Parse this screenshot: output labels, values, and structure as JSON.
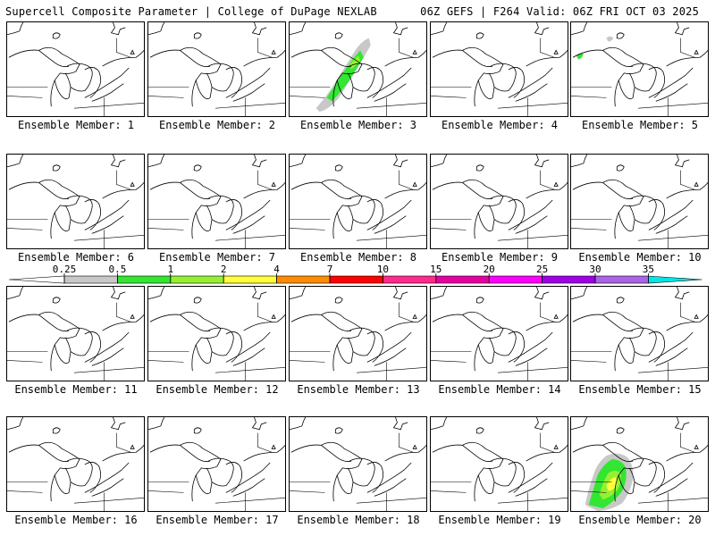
{
  "header": {
    "left": "Supercell Composite Parameter | College of DuPage NEXLAB",
    "right": "06Z GEFS | F264 Valid: 06Z FRI OCT 03 2025"
  },
  "panels": [
    {
      "label": "Ensemble Member: 1",
      "blob": "none"
    },
    {
      "label": "Ensemble Member: 2",
      "blob": "none"
    },
    {
      "label": "Ensemble Member: 3",
      "blob": "michigan-band"
    },
    {
      "label": "Ensemble Member: 4",
      "blob": "none"
    },
    {
      "label": "Ensemble Member: 5",
      "blob": "nw-speck"
    },
    {
      "label": "Ensemble Member: 6",
      "blob": "none"
    },
    {
      "label": "Ensemble Member: 7",
      "blob": "none"
    },
    {
      "label": "Ensemble Member: 8",
      "blob": "none"
    },
    {
      "label": "Ensemble Member: 9",
      "blob": "none"
    },
    {
      "label": "Ensemble Member: 10",
      "blob": "none"
    },
    {
      "label": "Ensemble Member: 11",
      "blob": "none"
    },
    {
      "label": "Ensemble Member: 12",
      "blob": "none"
    },
    {
      "label": "Ensemble Member: 13",
      "blob": "none"
    },
    {
      "label": "Ensemble Member: 14",
      "blob": "none"
    },
    {
      "label": "Ensemble Member: 15",
      "blob": "none"
    },
    {
      "label": "Ensemble Member: 16",
      "blob": "none"
    },
    {
      "label": "Ensemble Member: 17",
      "blob": "none"
    },
    {
      "label": "Ensemble Member: 18",
      "blob": "none"
    },
    {
      "label": "Ensemble Member: 19",
      "blob": "none"
    },
    {
      "label": "Ensemble Member: 20",
      "blob": "wisconsin-large"
    }
  ],
  "legend": {
    "ticks": [
      "0.25",
      "0.5",
      "1",
      "2",
      "4",
      "7",
      "10",
      "15",
      "20",
      "25",
      "30",
      "35"
    ],
    "colors": [
      "#c8c8c8",
      "#32e632",
      "#96f032",
      "#ffff3c",
      "#ff8c00",
      "#ff0000",
      "#ff2a8c",
      "#e600a0",
      "#ff00ff",
      "#a000e6",
      "#aa64e6",
      "#00e6e6"
    ]
  }
}
